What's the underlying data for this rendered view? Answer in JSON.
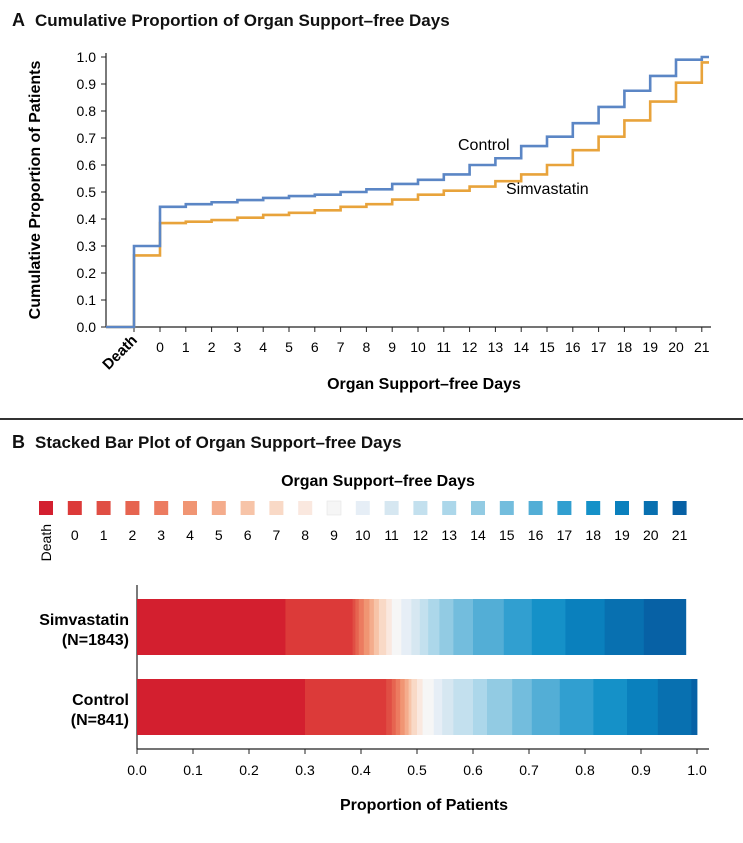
{
  "panel_a": {
    "letter": "A",
    "title": "Cumulative Proportion of Organ Support–free Days"
  },
  "panel_b": {
    "letter": "B",
    "title": "Stacked Bar Plot of Organ Support–free Days",
    "legend_title": "Organ Support–free Days"
  },
  "chart_data": [
    {
      "type": "line",
      "title": "Cumulative Proportion of Organ Support–free Days",
      "xlabel": "Organ Support–free Days",
      "ylabel": "Cumulative Proportion of Patients",
      "categories": [
        "Death",
        "0",
        "1",
        "2",
        "3",
        "4",
        "5",
        "6",
        "7",
        "8",
        "9",
        "10",
        "11",
        "12",
        "13",
        "14",
        "15",
        "16",
        "17",
        "18",
        "19",
        "20",
        "21"
      ],
      "yticks": [
        "0.0",
        "0.1",
        "0.2",
        "0.3",
        "0.4",
        "0.5",
        "0.6",
        "0.7",
        "0.8",
        "0.9",
        "1.0"
      ],
      "ylim": [
        0,
        1
      ],
      "series": [
        {
          "name": "Control",
          "color": "#5b86c5",
          "values": [
            0.3,
            0.445,
            0.455,
            0.462,
            0.47,
            0.478,
            0.485,
            0.49,
            0.5,
            0.51,
            0.53,
            0.545,
            0.565,
            0.6,
            0.625,
            0.67,
            0.705,
            0.755,
            0.815,
            0.875,
            0.93,
            0.99,
            1.0
          ]
        },
        {
          "name": "Simvastatin",
          "color": "#e8a33b",
          "values": [
            0.265,
            0.385,
            0.39,
            0.396,
            0.405,
            0.415,
            0.423,
            0.432,
            0.445,
            0.455,
            0.472,
            0.49,
            0.505,
            0.52,
            0.54,
            0.565,
            0.6,
            0.655,
            0.705,
            0.765,
            0.835,
            0.905,
            0.98
          ]
        }
      ],
      "annotations": [
        "Control",
        "Simvastatin"
      ]
    },
    {
      "type": "bar",
      "orientation": "horizontal",
      "stacked": true,
      "title": "Stacked Bar Plot of Organ Support–free Days",
      "xlabel": "Proportion of Patients",
      "xlim": [
        0,
        1
      ],
      "xticks": [
        "0.0",
        "0.1",
        "0.2",
        "0.3",
        "0.4",
        "0.5",
        "0.6",
        "0.7",
        "0.8",
        "0.9",
        "1.0"
      ],
      "legend_categories": [
        "Death",
        "0",
        "1",
        "2",
        "3",
        "4",
        "5",
        "6",
        "7",
        "8",
        "9",
        "10",
        "11",
        "12",
        "13",
        "14",
        "15",
        "16",
        "17",
        "18",
        "19",
        "20",
        "21"
      ],
      "legend_colors": [
        "#d31f2f",
        "#dc3a39",
        "#e04e44",
        "#e66450",
        "#ec7b60",
        "#f09573",
        "#f4ac8c",
        "#f7c4a8",
        "#f9d9c6",
        "#fae8df",
        "#f6f6f6",
        "#e6eef6",
        "#d6e7f1",
        "#c3e0ee",
        "#acd7ea",
        "#92cbe3",
        "#73bddd",
        "#53aed6",
        "#319fd0",
        "#1591c8",
        "#0a80bd",
        "#0870b0",
        "#0761a5"
      ],
      "bars": [
        {
          "name": "Simvastatin",
          "label": "Simvastatin\n(N=1843)",
          "label_line1": "Simvastatin",
          "label_line2": "(N=1843)",
          "cumulative": [
            0.265,
            0.385,
            0.39,
            0.396,
            0.405,
            0.415,
            0.423,
            0.432,
            0.445,
            0.455,
            0.472,
            0.49,
            0.505,
            0.52,
            0.54,
            0.565,
            0.6,
            0.655,
            0.705,
            0.765,
            0.835,
            0.905,
            0.98
          ]
        },
        {
          "name": "Control",
          "label": "Control\n(N=841)",
          "label_line1": "Control",
          "label_line2": "(N=841)",
          "cumulative": [
            0.3,
            0.445,
            0.455,
            0.462,
            0.47,
            0.478,
            0.485,
            0.49,
            0.5,
            0.51,
            0.53,
            0.545,
            0.565,
            0.6,
            0.625,
            0.67,
            0.705,
            0.755,
            0.815,
            0.875,
            0.93,
            0.99,
            1.0
          ]
        }
      ]
    }
  ]
}
